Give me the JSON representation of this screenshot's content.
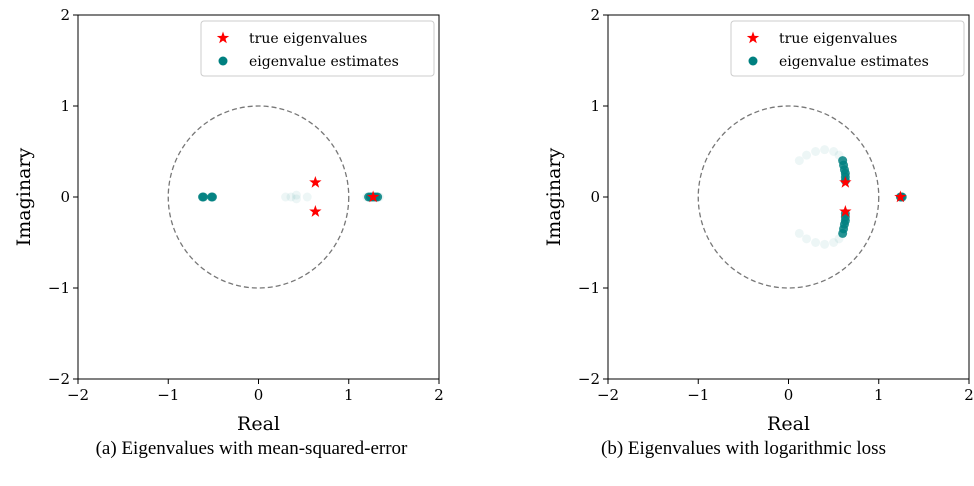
{
  "captions": [
    "(a) Eigenvalues with mean-squared-error",
    "(b) Eigenvalues with logarithmic loss"
  ],
  "colors": {
    "true": "#ff0000",
    "estimate": "#008080",
    "circle": "#777777"
  },
  "chart_data": [
    {
      "type": "scatter",
      "xlabel": "Real",
      "ylabel": "Imaginary",
      "xlim": [
        -2,
        2
      ],
      "ylim": [
        -2,
        2
      ],
      "xticks": [
        -2,
        -1,
        0,
        1,
        2
      ],
      "yticks": [
        -2,
        -1,
        0,
        1,
        2
      ],
      "tick_labels": [
        "−2",
        "−1",
        "0",
        "1",
        "2"
      ],
      "grid": false,
      "legend_position": "top-right",
      "reference_shape": "unit-circle",
      "series": [
        {
          "name": "true eigenvalues",
          "marker": "star",
          "color": "#ff0000",
          "points": [
            [
              0.63,
              0.16
            ],
            [
              0.63,
              -0.16
            ],
            [
              1.27,
              0.0
            ]
          ]
        },
        {
          "name": "eigenvalue estimates",
          "marker": "circle",
          "color": "#008080",
          "points": [
            [
              -0.62,
              0.0
            ],
            [
              -0.61,
              0.0
            ],
            [
              -0.52,
              0.0
            ],
            [
              -0.51,
              0.0
            ],
            [
              1.22,
              0.0
            ],
            [
              1.24,
              0.0
            ],
            [
              1.26,
              0.0
            ],
            [
              1.28,
              0.0
            ],
            [
              1.3,
              0.0
            ],
            [
              1.32,
              0.0
            ]
          ],
          "faint_points": [
            [
              0.3,
              0.0
            ],
            [
              0.36,
              0.0
            ],
            [
              0.42,
              0.02
            ],
            [
              0.42,
              -0.02
            ],
            [
              0.54,
              0.0
            ],
            [
              1.2,
              0.0
            ],
            [
              1.34,
              0.0
            ]
          ]
        }
      ]
    },
    {
      "type": "scatter",
      "xlabel": "Real",
      "ylabel": "Imaginary",
      "xlim": [
        -2,
        2
      ],
      "ylim": [
        -2,
        2
      ],
      "xticks": [
        -2,
        -1,
        0,
        1,
        2
      ],
      "yticks": [
        -2,
        -1,
        0,
        1,
        2
      ],
      "tick_labels": [
        "−2",
        "−1",
        "0",
        "1",
        "2"
      ],
      "grid": false,
      "legend_position": "top-right",
      "reference_shape": "unit-circle",
      "series": [
        {
          "name": "true eigenvalues",
          "marker": "star",
          "color": "#ff0000",
          "points": [
            [
              0.63,
              0.16
            ],
            [
              0.63,
              -0.16
            ],
            [
              1.24,
              0.0
            ]
          ]
        },
        {
          "name": "eigenvalue estimates",
          "marker": "circle",
          "color": "#008080",
          "points": [
            [
              0.6,
              0.4
            ],
            [
              0.61,
              0.35
            ],
            [
              0.62,
              0.3
            ],
            [
              0.63,
              0.26
            ],
            [
              0.63,
              0.22
            ],
            [
              0.63,
              0.18
            ],
            [
              0.6,
              -0.4
            ],
            [
              0.61,
              -0.35
            ],
            [
              0.62,
              -0.3
            ],
            [
              0.63,
              -0.26
            ],
            [
              0.63,
              -0.22
            ],
            [
              0.63,
              -0.18
            ],
            [
              1.24,
              0.0
            ],
            [
              1.25,
              0.0
            ],
            [
              1.26,
              0.0
            ]
          ],
          "faint_points": [
            [
              0.12,
              0.4
            ],
            [
              0.2,
              0.46
            ],
            [
              0.3,
              0.5
            ],
            [
              0.4,
              0.52
            ],
            [
              0.5,
              0.5
            ],
            [
              0.56,
              0.46
            ],
            [
              0.12,
              -0.4
            ],
            [
              0.2,
              -0.46
            ],
            [
              0.3,
              -0.5
            ],
            [
              0.4,
              -0.52
            ],
            [
              0.5,
              -0.5
            ],
            [
              0.56,
              -0.46
            ]
          ]
        }
      ]
    }
  ]
}
